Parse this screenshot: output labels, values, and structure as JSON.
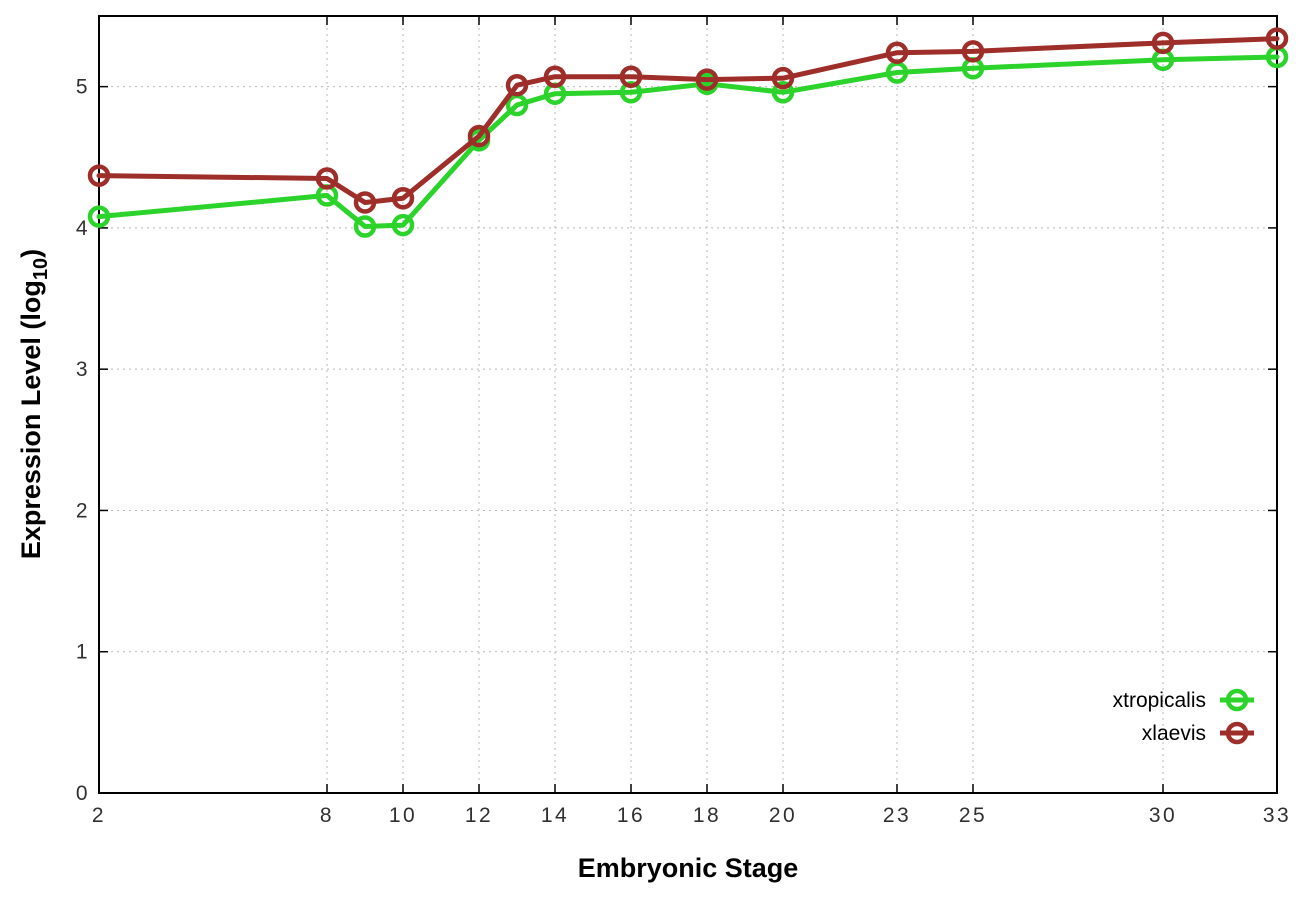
{
  "chart_data": {
    "type": "line",
    "title": "",
    "xlabel": "Embryonic Stage",
    "ylabel": {
      "text": "Expression Level (log10)",
      "prefix": "Expression Level (log",
      "subscript": "10",
      "suffix": ")"
    },
    "xlim": [
      2,
      33
    ],
    "ylim": [
      0,
      5.5
    ],
    "x_ticks": [
      "2",
      "8",
      "10",
      "12",
      "14",
      "16",
      "18",
      "20",
      "23",
      "25",
      "30",
      "33"
    ],
    "y_ticks": [
      "0",
      "1",
      "2",
      "3",
      "4",
      "5"
    ],
    "grid": "dotted",
    "legend_position": "inside-bottom-right",
    "marker": "open-circle",
    "x": [
      2,
      8,
      9,
      10,
      12,
      13,
      14,
      16,
      18,
      20,
      23,
      25,
      30,
      33
    ],
    "series": [
      {
        "name": "xtropicalis",
        "color": "#2bd32b",
        "values": [
          4.08,
          4.23,
          4.01,
          4.02,
          4.62,
          4.87,
          4.95,
          4.96,
          5.02,
          4.96,
          5.1,
          5.13,
          5.19,
          5.21
        ]
      },
      {
        "name": "xlaevis",
        "color": "#9e2e2a",
        "values": [
          4.37,
          4.35,
          4.18,
          4.21,
          4.65,
          5.01,
          5.07,
          5.07,
          5.05,
          5.06,
          5.24,
          5.25,
          5.31,
          5.34
        ]
      }
    ],
    "colors": {
      "axis": "#000000",
      "grid": "#b9b9b9",
      "tick_label": "#303030",
      "background": "#ffffff"
    }
  }
}
